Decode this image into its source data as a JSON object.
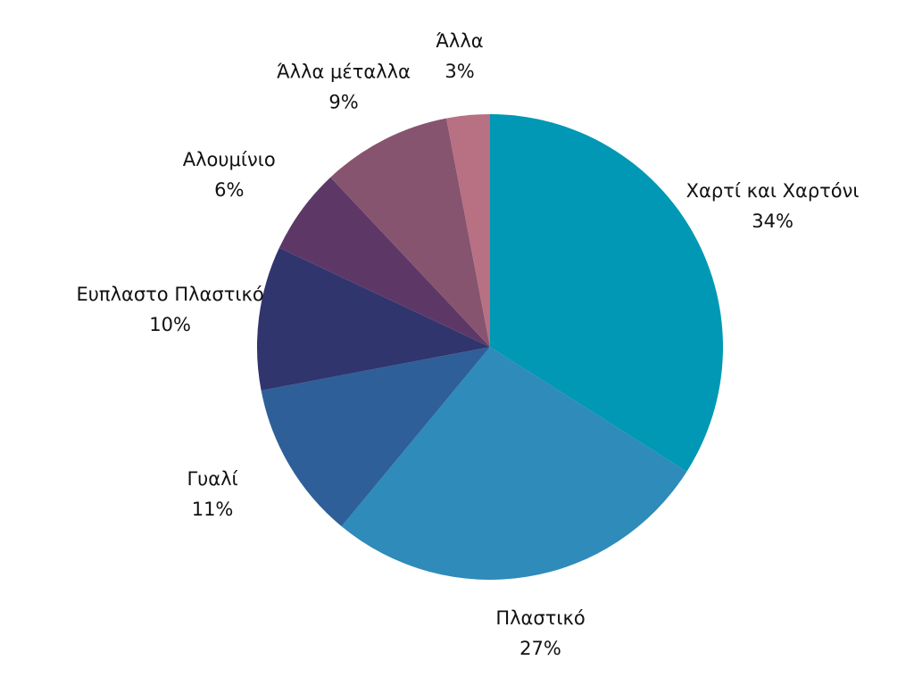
{
  "chart_data": {
    "type": "pie",
    "categories": [
      "Χαρτί και Χαρτόνι",
      "Πλαστικό",
      "Γυαλί",
      "Ευπλαστο Πλαστικό",
      "Αλουμίνιο",
      "Άλλα μέταλλα",
      "Άλλα"
    ],
    "values": [
      34,
      27,
      11,
      10,
      6,
      9,
      3
    ],
    "value_labels": [
      "34%",
      "27%",
      "11%",
      "10%",
      "6%",
      "9%",
      "3%"
    ],
    "colors": [
      "#0098b4",
      "#2e8bba",
      "#2e5f98",
      "#30356e",
      "#5d3867",
      "#87546f",
      "#b87083"
    ]
  }
}
